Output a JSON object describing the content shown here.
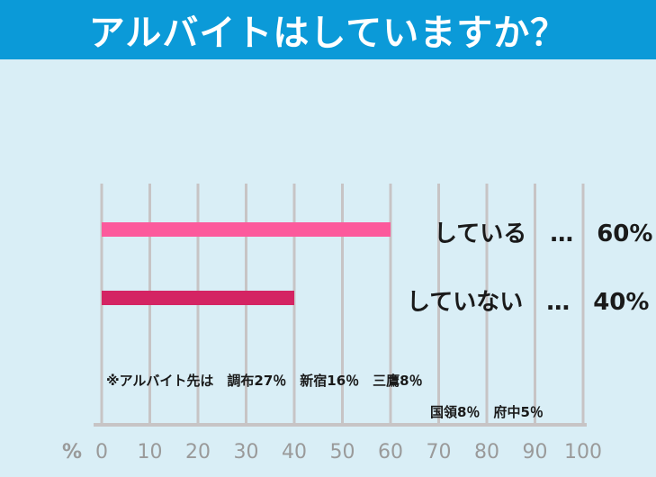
{
  "header": {
    "title": "アルバイトはしていますか？"
  },
  "colors": {
    "header_bg": "#0b9ad8",
    "background": "#d9eef6",
    "grid": "#c7c4c5",
    "axis_text": "#9a9a9a"
  },
  "chart_data": {
    "type": "bar",
    "orientation": "horizontal",
    "title": "アルバイトはしていますか？",
    "xlabel": "%",
    "xlim": [
      0,
      100
    ],
    "x_ticks": [
      "0",
      "10",
      "20",
      "30",
      "40",
      "50",
      "60",
      "70",
      "80",
      "90",
      "100"
    ],
    "grid": true,
    "categories": [
      "している",
      "していない"
    ],
    "values": [
      60,
      40
    ],
    "colors": [
      "#fc5a9c",
      "#d42463"
    ],
    "data_labels": [
      "している　…　60%",
      "していない　…　40%"
    ]
  },
  "notes": {
    "line1": "※アルバイト先は　調布27％　新宿16％　三鷹8％",
    "line2": "国領8％　府中5％"
  }
}
